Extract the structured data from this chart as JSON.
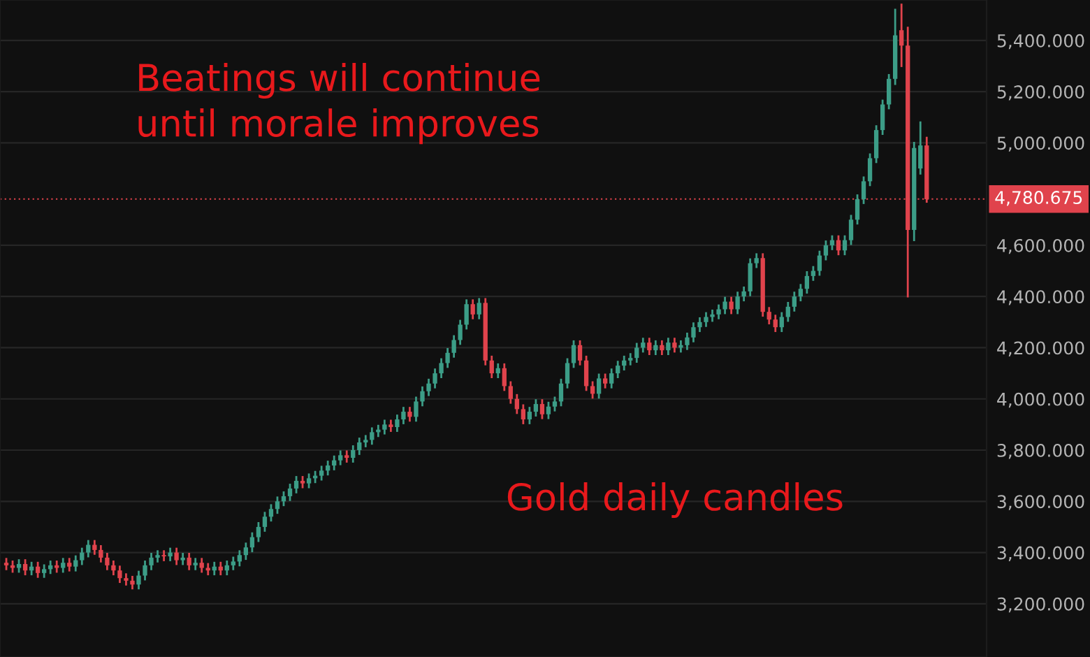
{
  "chart_data": {
    "type": "candlestick",
    "annotations": [
      "Beatings will continue\nuntil morale improves",
      "Gold daily candles"
    ],
    "categories": [
      null,
      null,
      null,
      null,
      null,
      null,
      null,
      null,
      null,
      null,
      null,
      null,
      null,
      null,
      null,
      null,
      null,
      null,
      null,
      null,
      null,
      null,
      null,
      null,
      null,
      null,
      null,
      null,
      null,
      null,
      null,
      null,
      null,
      null,
      null,
      null,
      null,
      null,
      null,
      null,
      null,
      null,
      null,
      null,
      null,
      null,
      null,
      null,
      null,
      null,
      null,
      null,
      null,
      null,
      null,
      null,
      null,
      null,
      null,
      null,
      null,
      null,
      null,
      null,
      null,
      null,
      null,
      null,
      null,
      null,
      null,
      null,
      null,
      null,
      null,
      null,
      null,
      null,
      null,
      null,
      null,
      null,
      null,
      null,
      null,
      null,
      null,
      null,
      null,
      null,
      null,
      null,
      null,
      null,
      null,
      null,
      null,
      null,
      null,
      null,
      null,
      null,
      null,
      null,
      null,
      null,
      null,
      null,
      null,
      null,
      null,
      null,
      null,
      null,
      null,
      null,
      null,
      null,
      null,
      null,
      null,
      null,
      null,
      null,
      null,
      null,
      null,
      null,
      null,
      null,
      null,
      null,
      null,
      null,
      null,
      null,
      null,
      null,
      null,
      null,
      null,
      null,
      null,
      null,
      null,
      null,
      null
    ],
    "ohlc": [
      [
        3360,
        3375,
        3335,
        3350
      ],
      [
        3350,
        3365,
        3325,
        3340
      ],
      [
        3340,
        3370,
        3325,
        3355
      ],
      [
        3355,
        3370,
        3315,
        3330
      ],
      [
        3330,
        3360,
        3315,
        3345
      ],
      [
        3345,
        3360,
        3305,
        3320
      ],
      [
        3320,
        3350,
        3305,
        3335
      ],
      [
        3335,
        3365,
        3320,
        3350
      ],
      [
        3350,
        3365,
        3325,
        3340
      ],
      [
        3340,
        3375,
        3325,
        3360
      ],
      [
        3360,
        3375,
        3330,
        3345
      ],
      [
        3345,
        3385,
        3330,
        3370
      ],
      [
        3370,
        3415,
        3355,
        3400
      ],
      [
        3400,
        3445,
        3385,
        3430
      ],
      [
        3430,
        3445,
        3395,
        3410
      ],
      [
        3410,
        3425,
        3365,
        3380
      ],
      [
        3380,
        3395,
        3335,
        3350
      ],
      [
        3350,
        3365,
        3315,
        3330
      ],
      [
        3330,
        3345,
        3285,
        3300
      ],
      [
        3300,
        3315,
        3275,
        3290
      ],
      [
        3290,
        3305,
        3260,
        3275
      ],
      [
        3275,
        3325,
        3260,
        3310
      ],
      [
        3310,
        3365,
        3295,
        3350
      ],
      [
        3350,
        3395,
        3335,
        3380
      ],
      [
        3380,
        3405,
        3365,
        3390
      ],
      [
        3390,
        3405,
        3370,
        3385
      ],
      [
        3385,
        3415,
        3370,
        3400
      ],
      [
        3400,
        3415,
        3355,
        3370
      ],
      [
        3370,
        3395,
        3355,
        3380
      ],
      [
        3380,
        3395,
        3335,
        3350
      ],
      [
        3350,
        3375,
        3335,
        3360
      ],
      [
        3360,
        3375,
        3325,
        3340
      ],
      [
        3340,
        3355,
        3315,
        3330
      ],
      [
        3330,
        3360,
        3315,
        3345
      ],
      [
        3345,
        3360,
        3315,
        3330
      ],
      [
        3330,
        3365,
        3315,
        3350
      ],
      [
        3350,
        3380,
        3335,
        3365
      ],
      [
        3365,
        3405,
        3350,
        3390
      ],
      [
        3390,
        3435,
        3375,
        3420
      ],
      [
        3420,
        3475,
        3405,
        3460
      ],
      [
        3460,
        3515,
        3445,
        3500
      ],
      [
        3500,
        3555,
        3485,
        3540
      ],
      [
        3540,
        3585,
        3525,
        3570
      ],
      [
        3570,
        3615,
        3555,
        3600
      ],
      [
        3600,
        3635,
        3585,
        3620
      ],
      [
        3620,
        3665,
        3605,
        3650
      ],
      [
        3650,
        3695,
        3635,
        3680
      ],
      [
        3680,
        3695,
        3655,
        3670
      ],
      [
        3670,
        3705,
        3655,
        3690
      ],
      [
        3690,
        3715,
        3675,
        3700
      ],
      [
        3700,
        3735,
        3685,
        3720
      ],
      [
        3720,
        3755,
        3705,
        3740
      ],
      [
        3740,
        3775,
        3725,
        3760
      ],
      [
        3760,
        3795,
        3745,
        3780
      ],
      [
        3780,
        3795,
        3755,
        3770
      ],
      [
        3770,
        3815,
        3755,
        3800
      ],
      [
        3800,
        3845,
        3785,
        3830
      ],
      [
        3830,
        3855,
        3815,
        3840
      ],
      [
        3840,
        3885,
        3825,
        3870
      ],
      [
        3870,
        3895,
        3855,
        3880
      ],
      [
        3880,
        3915,
        3865,
        3900
      ],
      [
        3900,
        3915,
        3875,
        3890
      ],
      [
        3890,
        3935,
        3875,
        3920
      ],
      [
        3920,
        3965,
        3905,
        3950
      ],
      [
        3950,
        3965,
        3915,
        3930
      ],
      [
        3930,
        4005,
        3915,
        3990
      ],
      [
        3990,
        4045,
        3975,
        4030
      ],
      [
        4030,
        4075,
        4015,
        4060
      ],
      [
        4060,
        4115,
        4045,
        4100
      ],
      [
        4100,
        4155,
        4085,
        4140
      ],
      [
        4140,
        4195,
        4125,
        4180
      ],
      [
        4180,
        4245,
        4165,
        4230
      ],
      [
        4230,
        4305,
        4215,
        4290
      ],
      [
        4290,
        4385,
        4275,
        4370
      ],
      [
        4370,
        4385,
        4315,
        4330
      ],
      [
        4330,
        4390,
        4315,
        4375
      ],
      [
        4375,
        4390,
        4135,
        4150
      ],
      [
        4150,
        4165,
        4085,
        4100
      ],
      [
        4100,
        4135,
        4085,
        4120
      ],
      [
        4120,
        4135,
        4035,
        4050
      ],
      [
        4050,
        4065,
        3985,
        4000
      ],
      [
        4000,
        4015,
        3945,
        3960
      ],
      [
        3960,
        3975,
        3905,
        3920
      ],
      [
        3920,
        3965,
        3905,
        3950
      ],
      [
        3950,
        3995,
        3935,
        3980
      ],
      [
        3980,
        3995,
        3925,
        3940
      ],
      [
        3940,
        3985,
        3925,
        3970
      ],
      [
        3970,
        4005,
        3955,
        3990
      ],
      [
        3990,
        4075,
        3975,
        4060
      ],
      [
        4060,
        4155,
        4045,
        4140
      ],
      [
        4140,
        4225,
        4125,
        4210
      ],
      [
        4210,
        4225,
        4135,
        4150
      ],
      [
        4150,
        4165,
        4035,
        4050
      ],
      [
        4050,
        4065,
        4005,
        4020
      ],
      [
        4020,
        4095,
        4005,
        4080
      ],
      [
        4080,
        4095,
        4045,
        4060
      ],
      [
        4060,
        4115,
        4045,
        4100
      ],
      [
        4100,
        4145,
        4085,
        4130
      ],
      [
        4130,
        4165,
        4115,
        4150
      ],
      [
        4150,
        4175,
        4135,
        4160
      ],
      [
        4160,
        4215,
        4145,
        4200
      ],
      [
        4200,
        4235,
        4185,
        4220
      ],
      [
        4220,
        4235,
        4175,
        4190
      ],
      [
        4190,
        4225,
        4175,
        4210
      ],
      [
        4210,
        4225,
        4175,
        4190
      ],
      [
        4190,
        4235,
        4175,
        4220
      ],
      [
        4220,
        4235,
        4185,
        4200
      ],
      [
        4200,
        4225,
        4185,
        4210
      ],
      [
        4210,
        4255,
        4195,
        4240
      ],
      [
        4240,
        4295,
        4225,
        4280
      ],
      [
        4280,
        4315,
        4265,
        4300
      ],
      [
        4300,
        4335,
        4285,
        4320
      ],
      [
        4320,
        4345,
        4305,
        4330
      ],
      [
        4330,
        4365,
        4315,
        4350
      ],
      [
        4350,
        4395,
        4335,
        4380
      ],
      [
        4380,
        4395,
        4335,
        4350
      ],
      [
        4350,
        4415,
        4335,
        4400
      ],
      [
        4400,
        4435,
        4385,
        4420
      ],
      [
        4420,
        4545,
        4405,
        4530
      ],
      [
        4530,
        4565,
        4515,
        4550
      ],
      [
        4550,
        4565,
        4325,
        4340
      ],
      [
        4340,
        4355,
        4295,
        4310
      ],
      [
        4310,
        4325,
        4265,
        4280
      ],
      [
        4280,
        4335,
        4265,
        4320
      ],
      [
        4320,
        4375,
        4305,
        4360
      ],
      [
        4360,
        4415,
        4345,
        4400
      ],
      [
        4400,
        4445,
        4385,
        4430
      ],
      [
        4430,
        4495,
        4415,
        4480
      ],
      [
        4480,
        4515,
        4465,
        4500
      ],
      [
        4500,
        4575,
        4485,
        4560
      ],
      [
        4560,
        4615,
        4545,
        4600
      ],
      [
        4600,
        4635,
        4585,
        4620
      ],
      [
        4620,
        4635,
        4565,
        4580
      ],
      [
        4580,
        4635,
        4565,
        4620
      ],
      [
        4620,
        4715,
        4605,
        4700
      ],
      [
        4700,
        4795,
        4685,
        4780
      ],
      [
        4780,
        4865,
        4765,
        4850
      ],
      [
        4850,
        4955,
        4835,
        4940
      ],
      [
        4940,
        5065,
        4925,
        5050
      ],
      [
        5050,
        5165,
        5035,
        5150
      ],
      [
        5150,
        5265,
        5135,
        5250
      ],
      [
        5250,
        5520,
        5230,
        5420
      ],
      [
        5440,
        5540,
        5300,
        5380
      ],
      [
        5380,
        5450,
        4400,
        4660
      ],
      [
        4660,
        5000,
        4620,
        4980
      ],
      [
        4900,
        5080,
        4880,
        4990
      ],
      [
        4990,
        5020,
        4770,
        4780
      ]
    ],
    "colors": [
      "#e0434c",
      "#e0434c",
      "#3c9d87",
      "#e0434c",
      "#3c9d87",
      "#e0434c",
      "#3c9d87",
      "#3c9d87",
      "#e0434c",
      "#3c9d87",
      "#e0434c",
      "#3c9d87",
      "#3c9d87",
      "#3c9d87",
      "#e0434c",
      "#e0434c",
      "#e0434c",
      "#e0434c",
      "#e0434c",
      "#e0434c",
      "#e0434c",
      "#3c9d87",
      "#3c9d87",
      "#3c9d87",
      "#3c9d87",
      "#e0434c",
      "#3c9d87",
      "#e0434c",
      "#3c9d87",
      "#e0434c",
      "#3c9d87",
      "#e0434c",
      "#e0434c",
      "#3c9d87",
      "#e0434c",
      "#3c9d87",
      "#3c9d87",
      "#3c9d87",
      "#3c9d87",
      "#3c9d87",
      "#3c9d87",
      "#3c9d87",
      "#3c9d87",
      "#3c9d87",
      "#3c9d87",
      "#3c9d87",
      "#3c9d87",
      "#e0434c",
      "#3c9d87",
      "#3c9d87",
      "#3c9d87",
      "#3c9d87",
      "#3c9d87",
      "#3c9d87",
      "#e0434c",
      "#3c9d87",
      "#3c9d87",
      "#3c9d87",
      "#3c9d87",
      "#3c9d87",
      "#3c9d87",
      "#e0434c",
      "#3c9d87",
      "#3c9d87",
      "#e0434c",
      "#3c9d87",
      "#3c9d87",
      "#3c9d87",
      "#3c9d87",
      "#3c9d87",
      "#3c9d87",
      "#3c9d87",
      "#3c9d87",
      "#3c9d87",
      "#e0434c",
      "#3c9d87",
      "#e0434c",
      "#e0434c",
      "#3c9d87",
      "#e0434c",
      "#e0434c",
      "#e0434c",
      "#e0434c",
      "#3c9d87",
      "#3c9d87",
      "#e0434c",
      "#3c9d87",
      "#3c9d87",
      "#3c9d87",
      "#3c9d87",
      "#3c9d87",
      "#e0434c",
      "#e0434c",
      "#e0434c",
      "#3c9d87",
      "#e0434c",
      "#3c9d87",
      "#3c9d87",
      "#3c9d87",
      "#3c9d87",
      "#3c9d87",
      "#3c9d87",
      "#e0434c",
      "#3c9d87",
      "#e0434c",
      "#3c9d87",
      "#e0434c",
      "#3c9d87",
      "#3c9d87",
      "#3c9d87",
      "#3c9d87",
      "#3c9d87",
      "#3c9d87",
      "#3c9d87",
      "#3c9d87",
      "#e0434c",
      "#3c9d87",
      "#3c9d87",
      "#3c9d87",
      "#3c9d87",
      "#e0434c",
      "#e0434c",
      "#e0434c",
      "#3c9d87",
      "#3c9d87",
      "#3c9d87",
      "#3c9d87",
      "#3c9d87",
      "#3c9d87",
      "#3c9d87",
      "#3c9d87",
      "#3c9d87",
      "#e0434c",
      "#3c9d87",
      "#3c9d87",
      "#3c9d87",
      "#3c9d87",
      "#3c9d87",
      "#3c9d87",
      "#3c9d87",
      "#3c9d87",
      "#3c9d87",
      "#e0434c",
      "#e0434c",
      "#3c9d87",
      "#3c9d87",
      "#e0434c"
    ],
    "ylim": [
      2992,
      5558
    ],
    "yticks": [
      {
        "value": 3200,
        "label": "3,200.000"
      },
      {
        "value": 3400,
        "label": "3,400.000"
      },
      {
        "value": 3600,
        "label": "3,600.000"
      },
      {
        "value": 3800,
        "label": "3,800.000"
      },
      {
        "value": 4000,
        "label": "4,000.000"
      },
      {
        "value": 4200,
        "label": "4,200.000"
      },
      {
        "value": 4400,
        "label": "4,400.000"
      },
      {
        "value": 4600,
        "label": "4,600.000"
      },
      {
        "value": 5000,
        "label": "5,000.000"
      },
      {
        "value": 5200,
        "label": "5,200.000"
      },
      {
        "value": 5400,
        "label": "5,400.000"
      }
    ],
    "ref_lines": [
      {
        "axis": "y",
        "value": 4780.675,
        "label": "4,780.675",
        "color": "#e0434c",
        "line_style": "dotted"
      }
    ],
    "grid": "y",
    "tick_labels": "y"
  }
}
